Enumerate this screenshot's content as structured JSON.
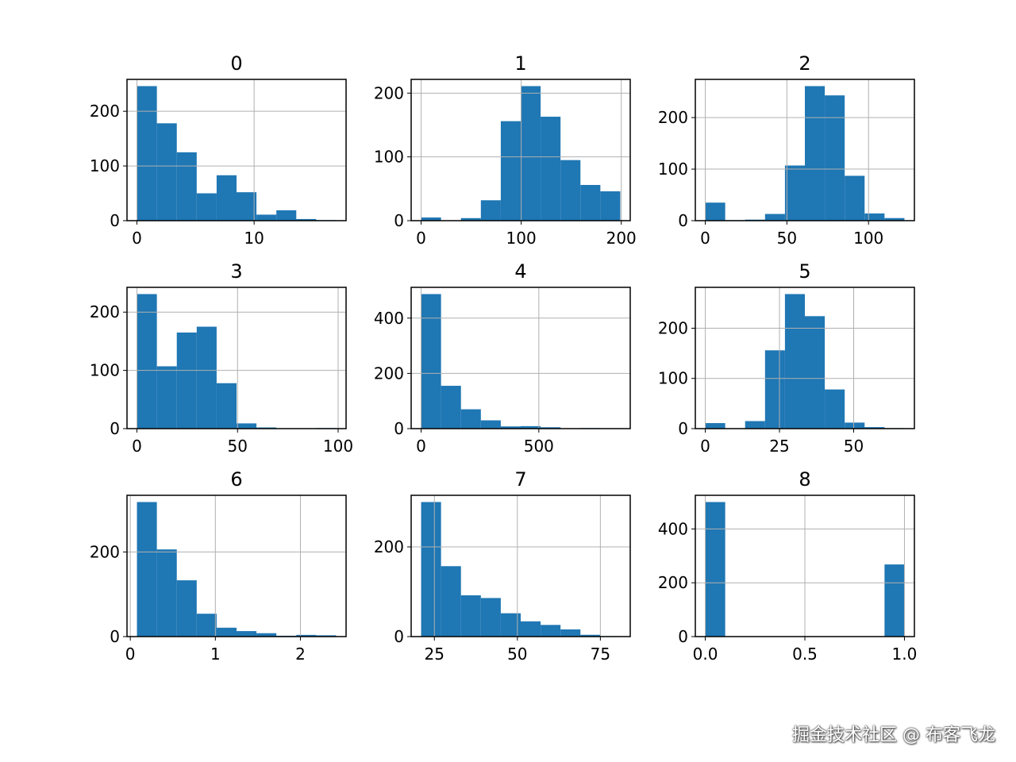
{
  "bar_color": "#1f77b4",
  "grid_color": "#b0b0b0",
  "watermark": "掘金技术社区 @ 布客飞龙",
  "chart_data": [
    {
      "type": "bar",
      "title": "0",
      "bin_range": [
        0,
        17
      ],
      "counts": [
        246,
        178,
        125,
        50,
        83,
        52,
        11,
        19,
        3,
        1
      ],
      "xlim": [
        -0.85,
        17.85
      ],
      "ylim": [
        0,
        258.3
      ],
      "xticks": [
        0,
        10
      ],
      "xticklabels": [
        "0",
        "10"
      ],
      "yticks": [
        0,
        100,
        200
      ],
      "grid": true
    },
    {
      "type": "bar",
      "title": "1",
      "bin_range": [
        0,
        199
      ],
      "counts": [
        5,
        0,
        4,
        32,
        156,
        211,
        163,
        95,
        56,
        46
      ],
      "xlim": [
        -9.95,
        208.95
      ],
      "ylim": [
        0,
        221.55
      ],
      "xticks": [
        0,
        100,
        200
      ],
      "xticklabels": [
        "0",
        "100",
        "200"
      ],
      "yticks": [
        0,
        100,
        200
      ],
      "grid": true
    },
    {
      "type": "bar",
      "title": "2",
      "bin_range": [
        0,
        122
      ],
      "counts": [
        35,
        1,
        2,
        13,
        107,
        261,
        243,
        87,
        14,
        5
      ],
      "xlim": [
        -6.1,
        128.1
      ],
      "ylim": [
        0,
        274.05
      ],
      "xticks": [
        0,
        50,
        100
      ],
      "xticklabels": [
        "0",
        "50",
        "100"
      ],
      "yticks": [
        0,
        100,
        200
      ],
      "grid": true
    },
    {
      "type": "bar",
      "title": "3",
      "bin_range": [
        0,
        99
      ],
      "counts": [
        231,
        107,
        165,
        175,
        78,
        9,
        2,
        0,
        0,
        1
      ],
      "xlim": [
        -4.95,
        103.95
      ],
      "ylim": [
        0,
        242.55
      ],
      "xticks": [
        0,
        50,
        100
      ],
      "xticklabels": [
        "0",
        "50",
        "100"
      ],
      "yticks": [
        0,
        100,
        200
      ],
      "grid": true
    },
    {
      "type": "bar",
      "title": "4",
      "bin_range": [
        0,
        846
      ],
      "counts": [
        487,
        155,
        70,
        30,
        8,
        9,
        5,
        1,
        2,
        1
      ],
      "xlim": [
        -42.3,
        888.3
      ],
      "ylim": [
        0,
        511.35
      ],
      "xticks": [
        0,
        500
      ],
      "xticklabels": [
        "0",
        "500"
      ],
      "yticks": [
        0,
        200,
        400
      ],
      "grid": true
    },
    {
      "type": "bar",
      "title": "5",
      "bin_range": [
        0,
        67.1
      ],
      "counts": [
        11,
        0,
        15,
        156,
        268,
        224,
        78,
        12,
        3,
        1
      ],
      "xlim": [
        -3.355,
        70.455
      ],
      "ylim": [
        0,
        281.4
      ],
      "xticks": [
        0,
        25,
        50
      ],
      "xticklabels": [
        "0",
        "25",
        "50"
      ],
      "yticks": [
        0,
        100,
        200
      ],
      "grid": true
    },
    {
      "type": "bar",
      "title": "6",
      "bin_range": [
        0.078,
        2.42
      ],
      "counts": [
        318,
        206,
        133,
        54,
        21,
        13,
        8,
        2,
        4,
        3
      ],
      "xlim": [
        -0.039,
        2.537
      ],
      "ylim": [
        0,
        333.9
      ],
      "xticks": [
        0,
        1,
        2
      ],
      "xticklabels": [
        "0",
        "1",
        "2"
      ],
      "yticks": [
        0,
        200
      ],
      "grid": true
    },
    {
      "type": "bar",
      "title": "7",
      "bin_range": [
        21,
        81
      ],
      "counts": [
        300,
        157,
        92,
        86,
        52,
        34,
        26,
        16,
        4,
        1
      ],
      "xlim": [
        18,
        84
      ],
      "ylim": [
        0,
        315
      ],
      "xticks": [
        25,
        50,
        75
      ],
      "xticklabels": [
        "25",
        "50",
        "75"
      ],
      "yticks": [
        0,
        200
      ],
      "grid": true
    },
    {
      "type": "bar",
      "title": "8",
      "bin_range": [
        0,
        1
      ],
      "counts": [
        500,
        0,
        0,
        0,
        0,
        0,
        0,
        0,
        0,
        268
      ],
      "xlim": [
        -0.05,
        1.05
      ],
      "ylim": [
        0,
        525
      ],
      "xticks": [
        0,
        0.5,
        1
      ],
      "xticklabels": [
        "0.0",
        "0.5",
        "1.0"
      ],
      "yticks": [
        0,
        200,
        400
      ],
      "grid": true
    }
  ]
}
